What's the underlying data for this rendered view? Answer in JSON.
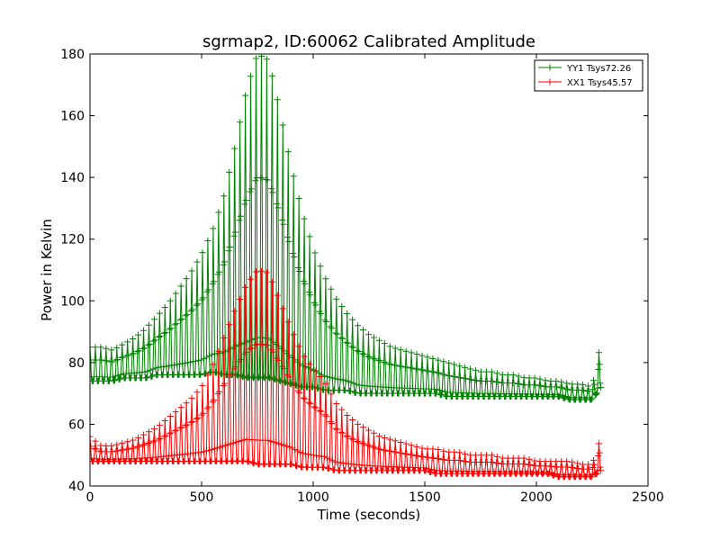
{
  "chart_data": {
    "type": "line",
    "title": "sgrmap2, ID:60062 Calibrated Amplitude",
    "xlabel": "Time (seconds)",
    "ylabel": "Power in Kelvin",
    "xlim": [
      0,
      2500
    ],
    "ylim": [
      40,
      180
    ],
    "xticks": [
      "0",
      "500",
      "1000",
      "1500",
      "2000",
      "2500"
    ],
    "yticks": [
      "40",
      "60",
      "80",
      "100",
      "120",
      "140",
      "160",
      "180"
    ],
    "xtick_values": [
      0,
      500,
      1000,
      1500,
      2000,
      2500
    ],
    "ytick_values": [
      40,
      60,
      80,
      100,
      120,
      140,
      160,
      180
    ],
    "grid": false,
    "legend_position": "top-right",
    "marker": "+",
    "series": [
      {
        "name": "YY1 Tsys72.26",
        "color": "#008000",
        "x": [
          0,
          50,
          100,
          150,
          200,
          250,
          300,
          350,
          400,
          450,
          500,
          550,
          600,
          650,
          700,
          750,
          800,
          850,
          900,
          950,
          1000,
          1050,
          1100,
          1150,
          1200,
          1250,
          1300,
          1350,
          1400,
          1450,
          1500,
          1550,
          1600,
          1650,
          1700,
          1750,
          1800,
          1850,
          1900,
          1950,
          2000,
          2050,
          2100,
          2150,
          2200,
          2250,
          2290
        ],
        "max": [
          85,
          85,
          84,
          86,
          88,
          91,
          95,
          99,
          104,
          109,
          115,
          123,
          134,
          150,
          168,
          180,
          178,
          162,
          144,
          129,
          117,
          108,
          101,
          96,
          92,
          89,
          87,
          85,
          84,
          83,
          82,
          81,
          80,
          79,
          78,
          77,
          77,
          76,
          76,
          75,
          75,
          74,
          74,
          73,
          73,
          72,
          87
        ],
        "min": [
          74,
          74,
          74,
          75,
          75,
          75,
          76,
          76,
          76,
          76,
          76,
          77,
          76,
          76,
          75,
          75,
          75,
          74,
          73,
          72,
          72,
          71,
          71,
          71,
          70,
          70,
          70,
          70,
          70,
          70,
          70,
          70,
          69,
          69,
          69,
          69,
          69,
          69,
          69,
          69,
          69,
          69,
          69,
          68,
          68,
          68,
          72
        ]
      },
      {
        "name": "XX1 Tsys45.57",
        "color": "#ff0000",
        "x": [
          0,
          50,
          100,
          150,
          200,
          250,
          300,
          350,
          400,
          450,
          500,
          550,
          600,
          650,
          700,
          750,
          800,
          850,
          900,
          950,
          1000,
          1050,
          1100,
          1150,
          1200,
          1250,
          1300,
          1350,
          1400,
          1450,
          1500,
          1550,
          1600,
          1650,
          1700,
          1750,
          1800,
          1850,
          1900,
          1950,
          2000,
          2050,
          2100,
          2150,
          2200,
          2250,
          2290
        ],
        "max": [
          56,
          53,
          53,
          54,
          55,
          57,
          59,
          62,
          65,
          68,
          72,
          79,
          88,
          97,
          105,
          110,
          109,
          100,
          91,
          83,
          78,
          74,
          67,
          63,
          60,
          58,
          56,
          55,
          54,
          53,
          52,
          52,
          51,
          51,
          50,
          50,
          50,
          49,
          49,
          49,
          48,
          48,
          48,
          48,
          47,
          47,
          56
        ],
        "min": [
          48,
          48,
          48,
          48,
          48,
          48,
          48,
          48,
          48,
          48,
          48,
          48,
          48,
          48,
          48,
          47,
          47,
          47,
          47,
          46,
          46,
          46,
          45,
          45,
          45,
          45,
          45,
          45,
          45,
          45,
          45,
          44,
          44,
          44,
          44,
          44,
          44,
          44,
          44,
          44,
          44,
          44,
          43,
          43,
          43,
          43,
          45
        ]
      }
    ]
  }
}
